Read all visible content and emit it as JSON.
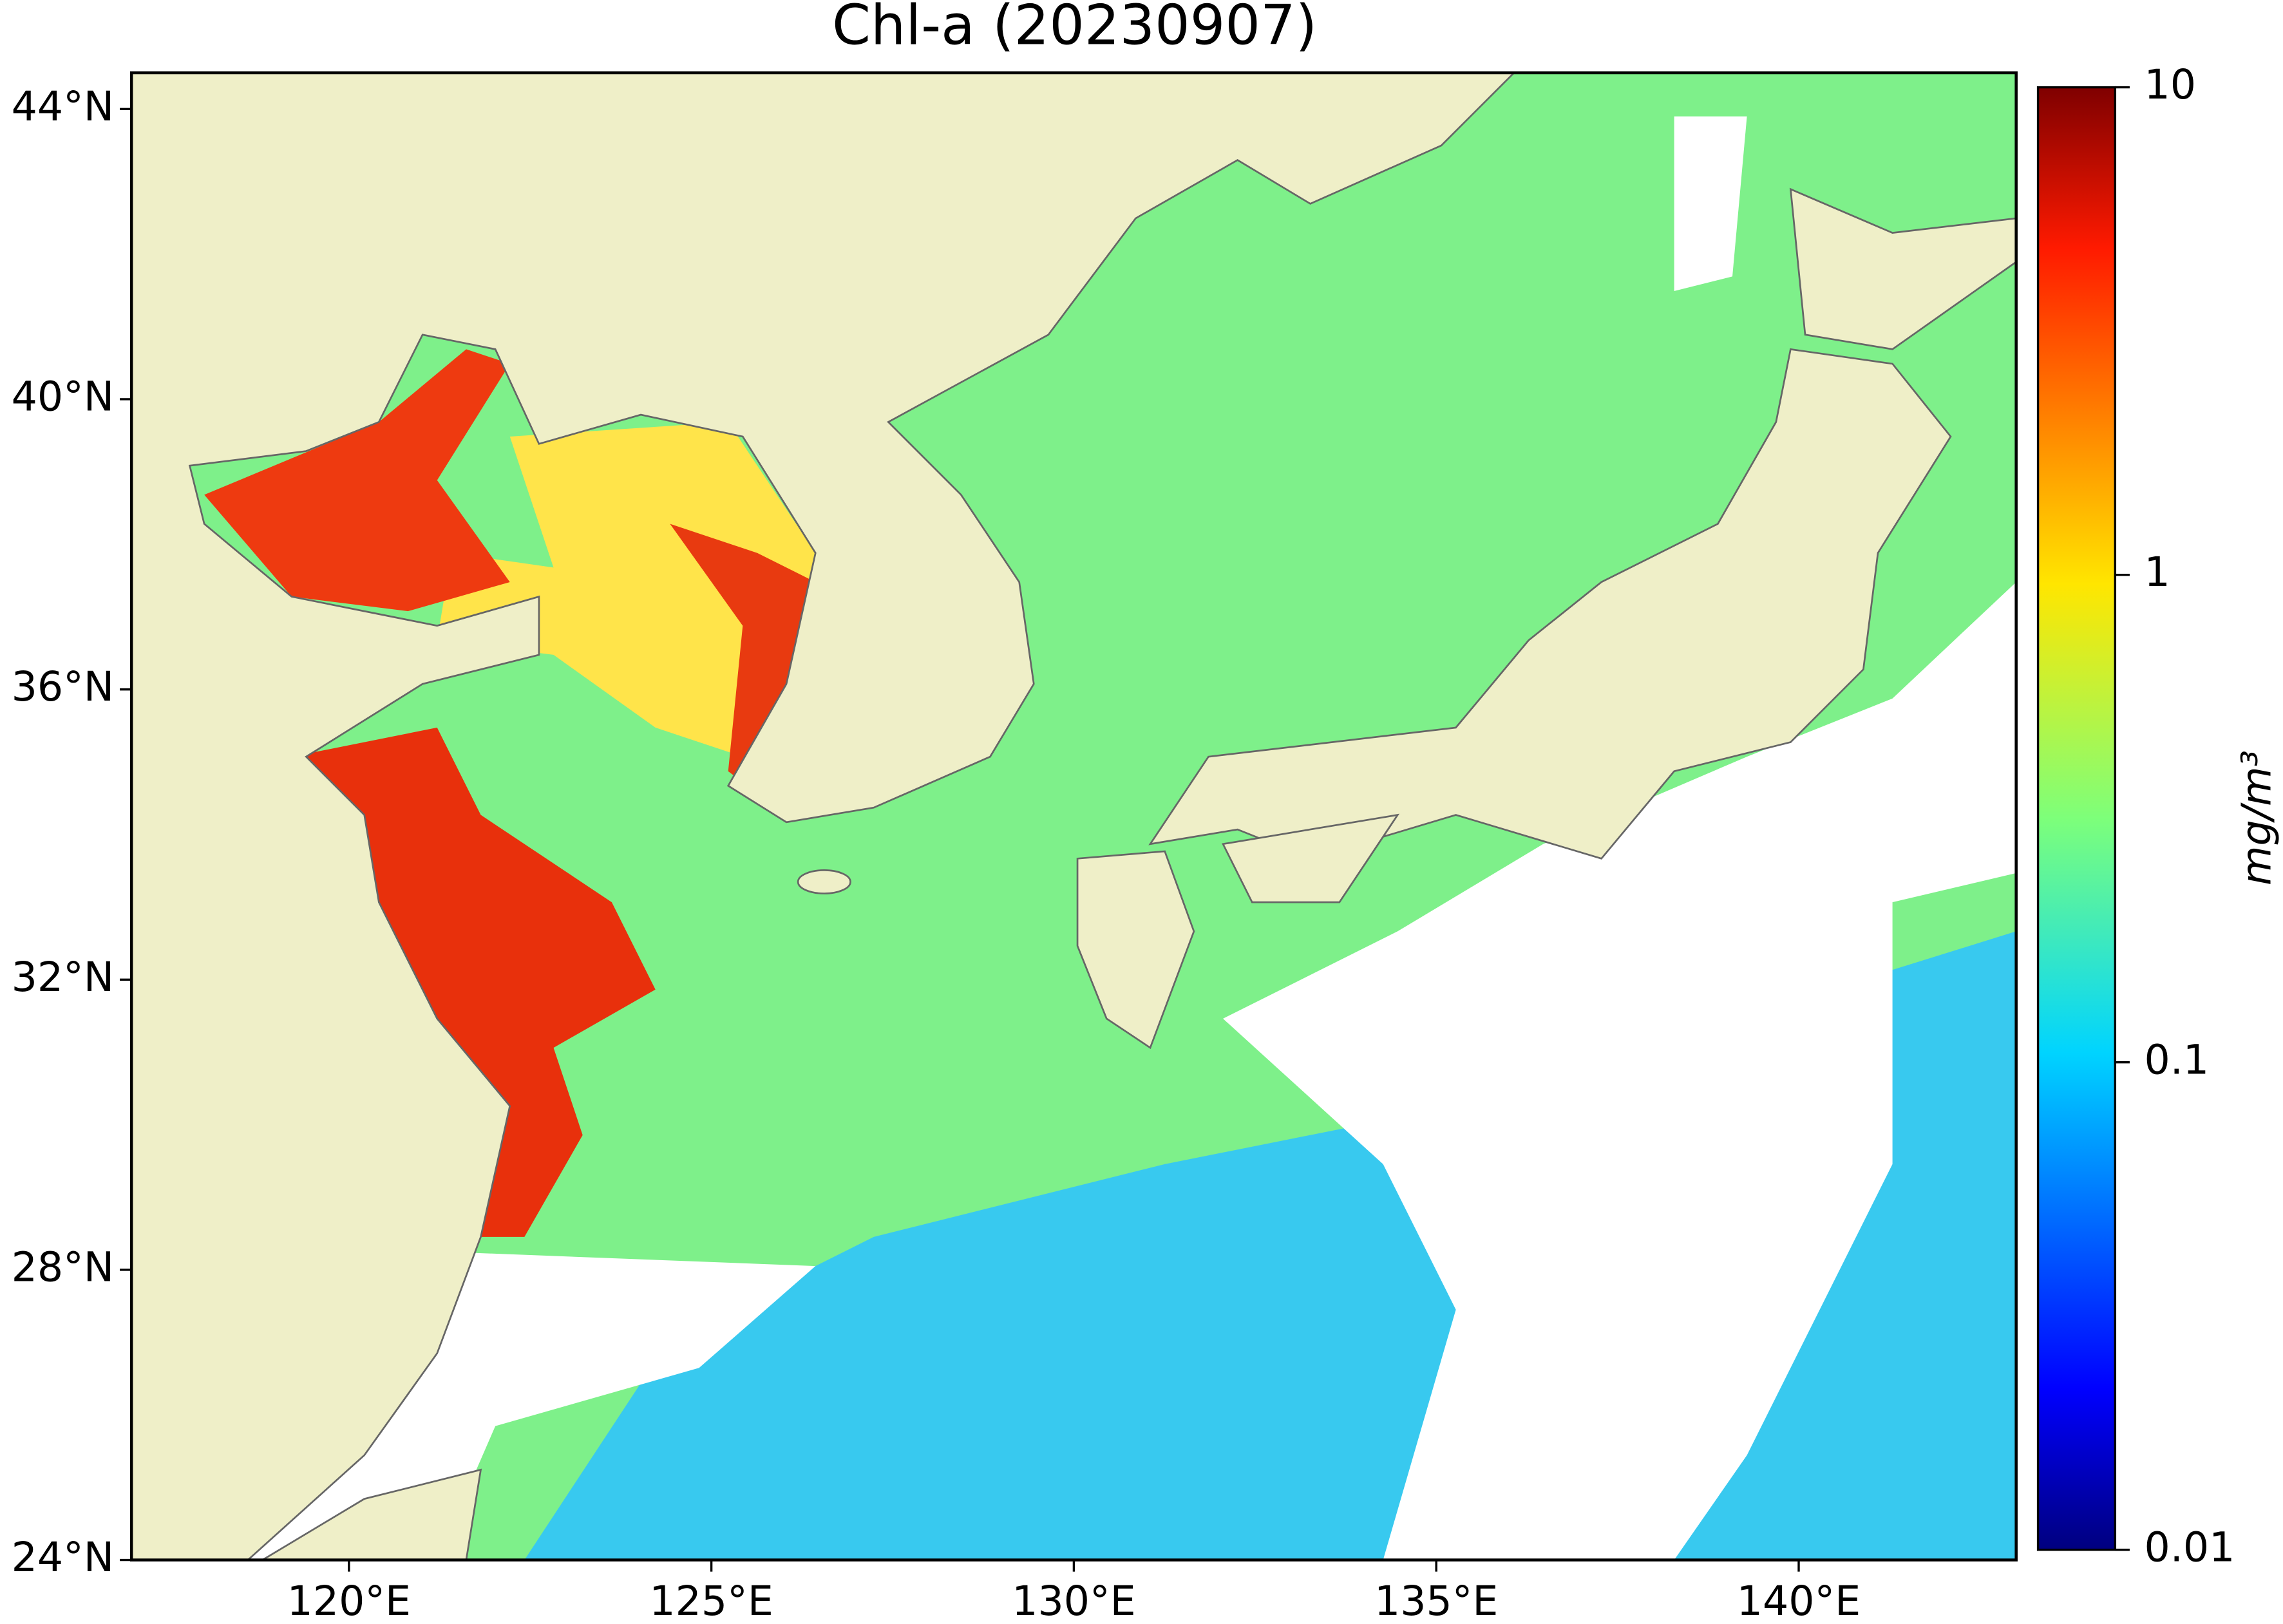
{
  "chart_data": {
    "type": "map",
    "title": "Chl-a (20230907)",
    "xlim": [
      117,
      143
    ],
    "ylim": [
      24,
      44.5
    ],
    "xticks": [
      {
        "value": 120,
        "label": "120°E"
      },
      {
        "value": 125,
        "label": "125°E"
      },
      {
        "value": 130,
        "label": "130°E"
      },
      {
        "value": 135,
        "label": "135°E"
      },
      {
        "value": 140,
        "label": "140°E"
      }
    ],
    "yticks": [
      {
        "value": 24,
        "label": "24°N"
      },
      {
        "value": 28,
        "label": "28°N"
      },
      {
        "value": 32,
        "label": "32°N"
      },
      {
        "value": 36,
        "label": "36°N"
      },
      {
        "value": 40,
        "label": "40°N"
      },
      {
        "value": 44,
        "label": "44°N"
      }
    ],
    "colorbar": {
      "label": "mg/m³",
      "scale": "log",
      "colormap": "jet",
      "lim": [
        0.01,
        10
      ],
      "ticks": [
        0.01,
        0.1,
        1,
        10
      ]
    }
  }
}
